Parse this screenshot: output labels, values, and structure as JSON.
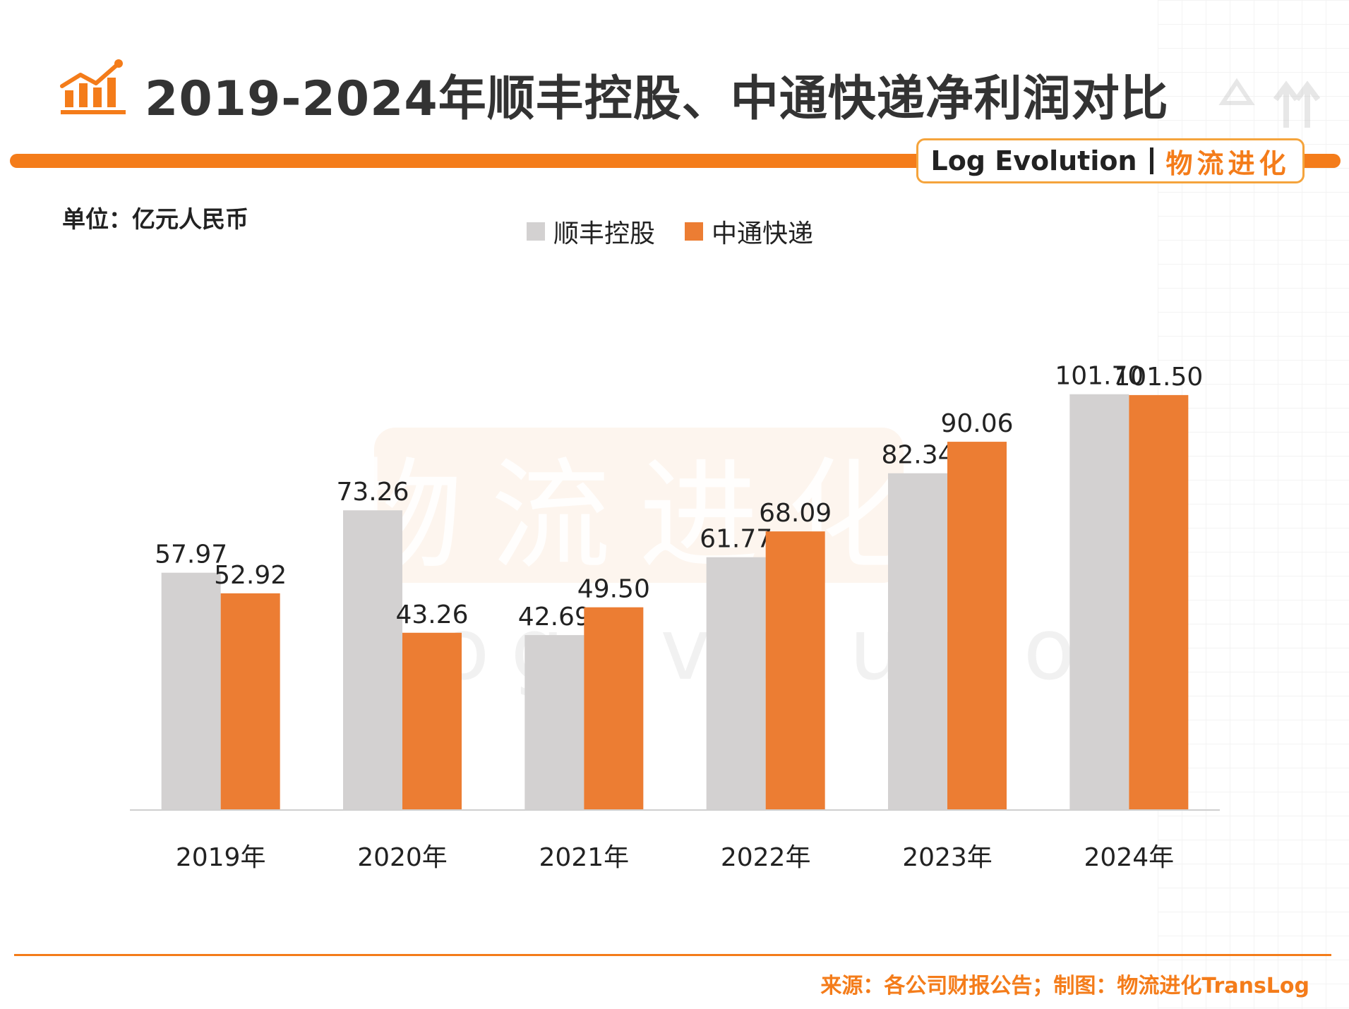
{
  "header": {
    "title": "2019-2024年顺丰控股、中通快递净利润对比",
    "brand_en": "Log Evolution",
    "brand_cn": "物流进化"
  },
  "watermark": {
    "main": "物流进化",
    "sub": "ogEvolutio"
  },
  "unit_label": "单位：亿元人民币",
  "footer": {
    "source": "来源：各公司财报公告；制图：物流进化TransLog"
  },
  "colors": {
    "accent": "#f47c1a",
    "sf": "#d3d1d1",
    "zto": "#ec7d33"
  },
  "chart_data": {
    "type": "bar",
    "categories": [
      "2019年",
      "2020年",
      "2021年",
      "2022年",
      "2023年",
      "2024年"
    ],
    "series": [
      {
        "name": "顺丰控股",
        "values": [
          57.97,
          73.26,
          42.69,
          61.77,
          82.34,
          101.7
        ],
        "labels": [
          "57.97",
          "73.26",
          "42.69",
          "61.77",
          "82.34",
          "101.70"
        ],
        "color": "#d3d1d1"
      },
      {
        "name": "中通快递",
        "values": [
          52.92,
          43.26,
          49.5,
          68.09,
          90.06,
          101.5
        ],
        "labels": [
          "52.92",
          "43.26",
          "49.50",
          "68.09",
          "90.06",
          "101.50"
        ],
        "color": "#ec7d33"
      }
    ],
    "ylim": [
      0,
      102
    ],
    "legend": "top-center",
    "grid": false
  }
}
